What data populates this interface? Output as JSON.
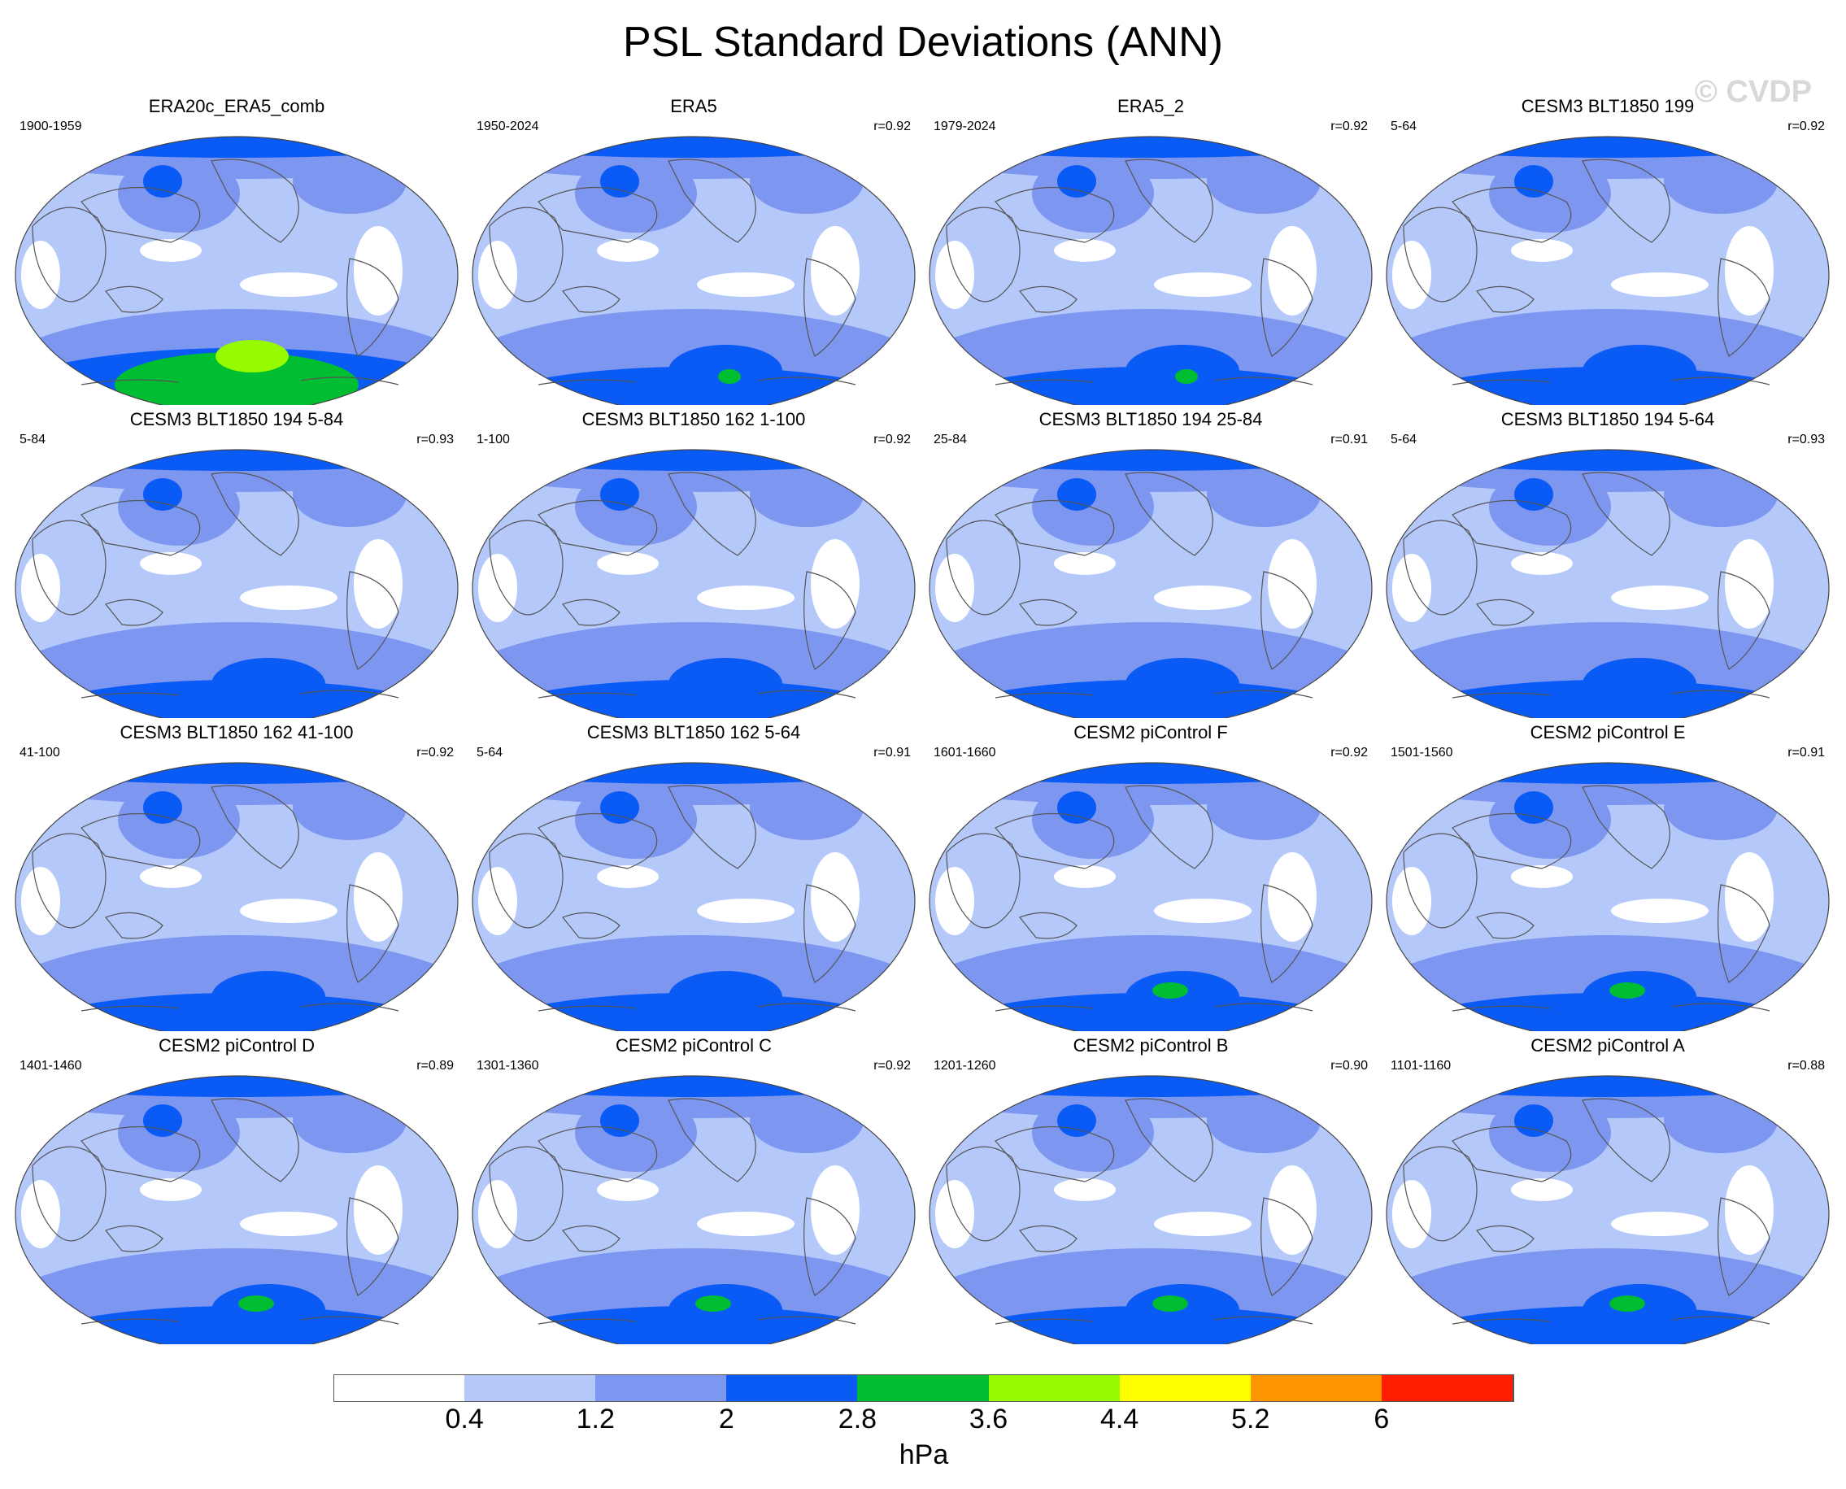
{
  "figure": {
    "title": "PSL Standard Deviations (ANN)",
    "watermark": "© CVDP"
  },
  "panels": [
    {
      "title": "ERA20c_ERA5_comb",
      "years": "1900-1959",
      "r": "",
      "variant": "era20c"
    },
    {
      "title": "ERA5",
      "years": "1950-2024",
      "r": "r=0.92",
      "variant": "era5"
    },
    {
      "title": "ERA5_2",
      "years": "1979-2024",
      "r": "r=0.92",
      "variant": "era5"
    },
    {
      "title": "CESM3 BLT1850 199",
      "years": "5-64",
      "r": "r=0.92",
      "variant": "mod"
    },
    {
      "title": "CESM3 BLT1850 194 5-84",
      "years": "5-84",
      "r": "r=0.93",
      "variant": "mod"
    },
    {
      "title": "CESM3 BLT1850 162 1-100",
      "years": "1-100",
      "r": "r=0.92",
      "variant": "mod_arc"
    },
    {
      "title": "CESM3 BLT1850 194 25-84",
      "years": "25-84",
      "r": "r=0.91",
      "variant": "mod"
    },
    {
      "title": "CESM3 BLT1850 194 5-64",
      "years": "5-64",
      "r": "r=0.93",
      "variant": "mod"
    },
    {
      "title": "CESM3 BLT1850 162 41-100",
      "years": "41-100",
      "r": "r=0.92",
      "variant": "mod_arc"
    },
    {
      "title": "CESM3 BLT1850 162 5-64",
      "years": "5-64",
      "r": "r=0.91",
      "variant": "mod_arc"
    },
    {
      "title": "CESM2 piControl F",
      "years": "1601-1660",
      "r": "r=0.92",
      "variant": "cesm2"
    },
    {
      "title": "CESM2 piControl E",
      "years": "1501-1560",
      "r": "r=0.91",
      "variant": "cesm2"
    },
    {
      "title": "CESM2 piControl D",
      "years": "1401-1460",
      "r": "r=0.89",
      "variant": "cesm2"
    },
    {
      "title": "CESM2 piControl C",
      "years": "1301-1360",
      "r": "r=0.92",
      "variant": "cesm2"
    },
    {
      "title": "CESM2 piControl B",
      "years": "1201-1260",
      "r": "r=0.90",
      "variant": "cesm2"
    },
    {
      "title": "CESM2 piControl A",
      "years": "1101-1160",
      "r": "r=0.88",
      "variant": "cesm2"
    }
  ],
  "colorbar": {
    "colors": [
      "#ffffff",
      "#b4c8fa",
      "#7d96f0",
      "#0a5af5",
      "#00be32",
      "#96fa00",
      "#ffff00",
      "#ff9600",
      "#ff1e00"
    ],
    "labels": [
      "0.4",
      "1.2",
      "2",
      "2.8",
      "3.6",
      "4.4",
      "5.2",
      "6"
    ],
    "units": "hPa"
  }
}
